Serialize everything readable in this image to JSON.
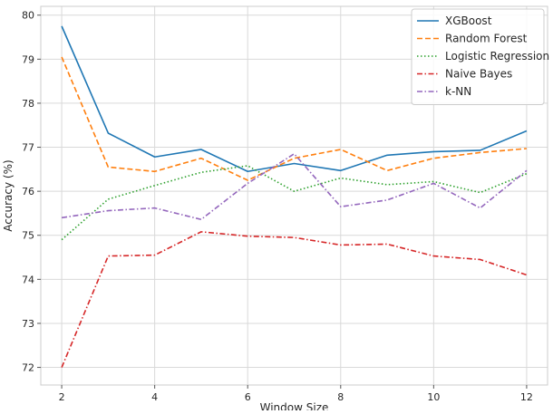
{
  "chart_data": {
    "type": "line",
    "title": "",
    "xlabel": "Window Size",
    "ylabel": "Accuracy (%)",
    "x": [
      2,
      3,
      4,
      5,
      6,
      7,
      8,
      9,
      10,
      11,
      12
    ],
    "xlim": [
      1.55,
      12.45
    ],
    "ylim": [
      71.6,
      80.2
    ],
    "xticks": [
      2,
      4,
      6,
      8,
      10,
      12
    ],
    "yticks": [
      72,
      73,
      74,
      75,
      76,
      77,
      78,
      79,
      80
    ],
    "grid": true,
    "legend_position": "top-right",
    "series": [
      {
        "name": "XGBoost",
        "color": "#1f77b4",
        "dash": "solid",
        "values": [
          79.75,
          77.32,
          76.78,
          76.95,
          76.45,
          76.63,
          76.47,
          76.82,
          76.9,
          76.93,
          77.37
        ]
      },
      {
        "name": "Random Forest",
        "color": "#ff7f0e",
        "dash": "dashed",
        "values": [
          79.05,
          76.55,
          76.45,
          76.75,
          76.25,
          76.75,
          76.95,
          76.47,
          76.75,
          76.88,
          76.97
        ]
      },
      {
        "name": "Logistic Regression",
        "color": "#2ca02c",
        "dash": "dotted",
        "values": [
          74.9,
          75.82,
          76.13,
          76.43,
          76.58,
          76.0,
          76.3,
          76.15,
          76.22,
          75.97,
          76.4
        ]
      },
      {
        "name": "Naive Bayes",
        "color": "#d62728",
        "dash": "dashdot",
        "values": [
          72.0,
          74.53,
          74.55,
          75.08,
          74.98,
          74.95,
          74.78,
          74.8,
          74.53,
          74.45,
          74.1
        ]
      },
      {
        "name": "k-NN",
        "color": "#9467bd",
        "dash": "dashdot",
        "values": [
          75.4,
          75.56,
          75.62,
          75.36,
          76.18,
          76.85,
          75.65,
          75.8,
          76.18,
          75.62,
          76.47
        ]
      }
    ]
  }
}
